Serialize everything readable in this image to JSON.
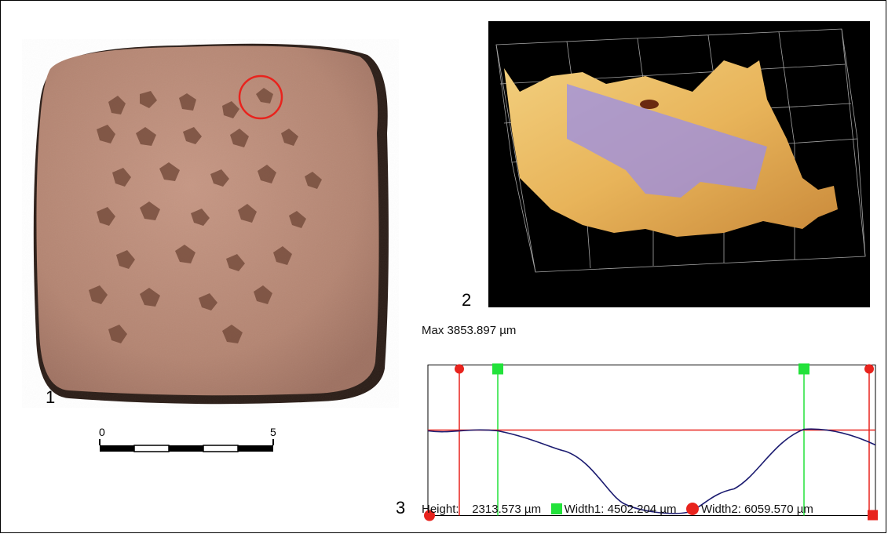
{
  "panels": {
    "photo_label": "1",
    "render_label": "2",
    "profile_label": "3"
  },
  "scale_bar": {
    "start_label": "0",
    "end_label": "5"
  },
  "profile": {
    "max_label": "Max",
    "max_value": "3853.897 µm",
    "height_label": "Height:",
    "height_value": "2313.573 µm",
    "width1_label": "Width1:",
    "width1_value": "4502.204 µm",
    "width2_label": "Width2:",
    "width2_value": "6059.570 µm"
  },
  "colors": {
    "clay": "#b98a76",
    "profile_line": "#1b1b70",
    "red_marker": "#e8231d",
    "green_marker": "#22e23a",
    "render_surface": "#e8b45a",
    "render_band": "#9a8ee8"
  }
}
